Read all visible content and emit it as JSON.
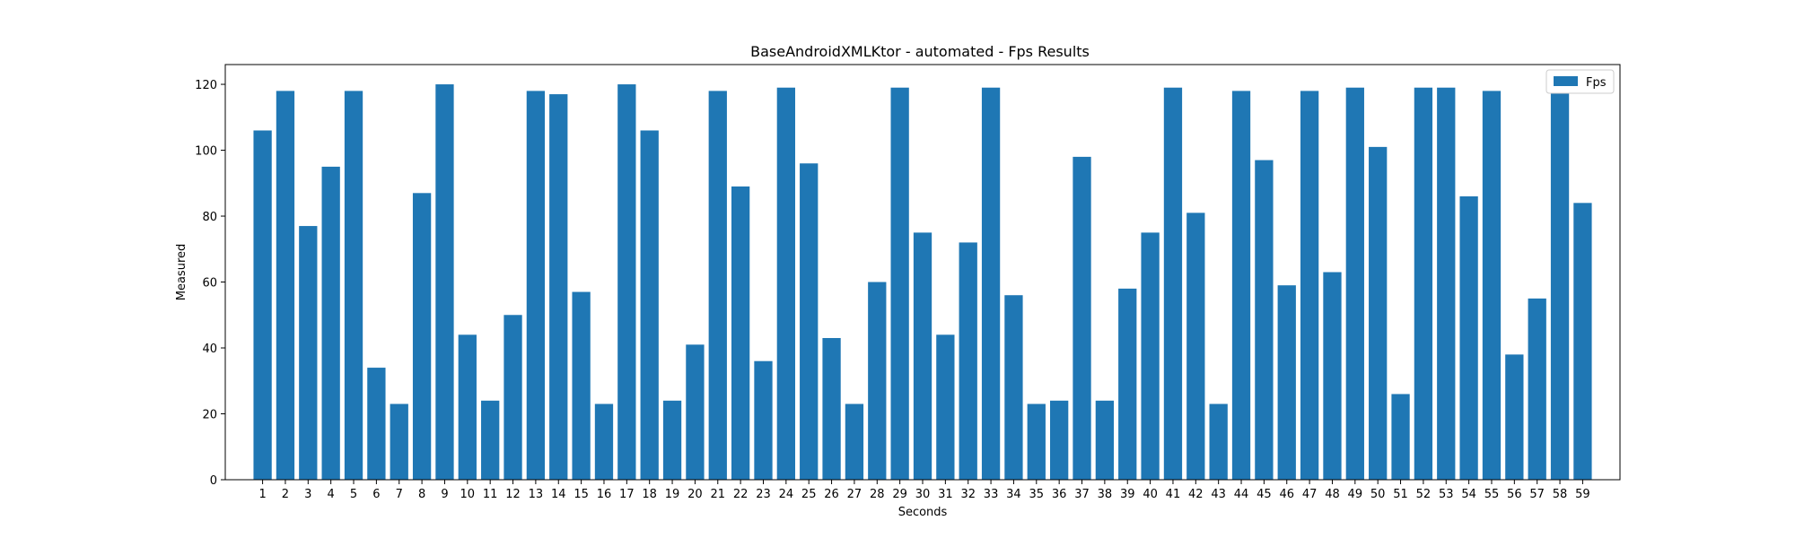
{
  "chart_data": {
    "type": "bar",
    "title": "BaseAndroidXMLKtor - automated - Fps Results",
    "xlabel": "Seconds",
    "ylabel": "Measured",
    "ylim": [
      0,
      126
    ],
    "yticks": [
      0,
      20,
      40,
      60,
      80,
      100,
      120
    ],
    "categories": [
      "1",
      "2",
      "3",
      "4",
      "5",
      "6",
      "7",
      "8",
      "9",
      "10",
      "11",
      "12",
      "13",
      "14",
      "15",
      "16",
      "17",
      "18",
      "19",
      "20",
      "21",
      "22",
      "23",
      "24",
      "25",
      "26",
      "27",
      "28",
      "29",
      "30",
      "31",
      "32",
      "33",
      "34",
      "35",
      "36",
      "37",
      "38",
      "39",
      "40",
      "41",
      "42",
      "43",
      "44",
      "45",
      "46",
      "47",
      "48",
      "49",
      "50",
      "51",
      "52",
      "53",
      "54",
      "55",
      "56",
      "57",
      "58",
      "59"
    ],
    "series": [
      {
        "name": "Fps",
        "color": "#1f77b4",
        "values": [
          106,
          118,
          77,
          95,
          118,
          34,
          23,
          87,
          120,
          44,
          24,
          50,
          118,
          117,
          57,
          23,
          120,
          106,
          24,
          41,
          118,
          89,
          36,
          119,
          96,
          43,
          23,
          60,
          119,
          75,
          44,
          72,
          119,
          56,
          23,
          24,
          98,
          24,
          58,
          75,
          119,
          81,
          23,
          118,
          97,
          59,
          118,
          63,
          119,
          101,
          26,
          119,
          119,
          86,
          118,
          38,
          55,
          119,
          84
        ]
      }
    ],
    "legend": "top-right",
    "grid": false
  }
}
